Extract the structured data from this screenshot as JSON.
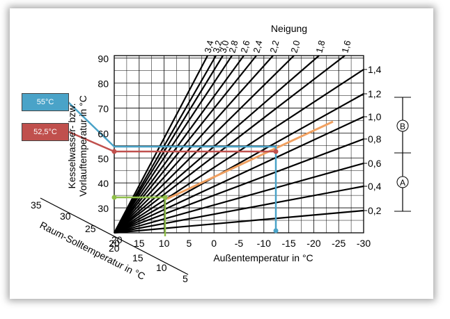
{
  "chart_data": {
    "type": "line",
    "title": "",
    "slope_label": "Neigung",
    "ylabel_line1": "Kesselwasser- bzw.",
    "ylabel_line2": "Vorlauftemperatur in °C",
    "xlabel": "Außentemperatur in °C",
    "room_label": "Raum-Solltemperatur in °C",
    "y_ticks": [
      "90",
      "80",
      "70",
      "60",
      "50",
      "40",
      "30"
    ],
    "x_ticks": [
      "20",
      "15",
      "10",
      "5",
      "0",
      "-5",
      "-10",
      "-15",
      "-20",
      "-25",
      "-30"
    ],
    "room_ticks_top": [
      "35",
      "30",
      "25",
      "20"
    ],
    "room_ticks_bottom": [
      "20",
      "15",
      "10",
      "5"
    ],
    "right_slopes": [
      "1,4",
      "1,2",
      "1,0",
      "0,8",
      "0,6",
      "0,4",
      "0,2"
    ],
    "top_slopes": [
      "3,4",
      "3,2",
      "3,0",
      "2,8",
      "2,6",
      "2,4",
      "2,2",
      "2,0",
      "1,8",
      "1,6"
    ],
    "range_a": "A",
    "range_b": "B",
    "series": [
      {
        "slope": 3.4
      },
      {
        "slope": 3.2
      },
      {
        "slope": 3.0
      },
      {
        "slope": 2.8
      },
      {
        "slope": 2.6
      },
      {
        "slope": 2.4
      },
      {
        "slope": 2.2
      },
      {
        "slope": 2.0
      },
      {
        "slope": 1.8
      },
      {
        "slope": 1.6
      },
      {
        "slope": 1.4
      },
      {
        "slope": 1.2
      },
      {
        "slope": 1.0
      },
      {
        "slope": 0.8
      },
      {
        "slope": 0.6
      },
      {
        "slope": 0.4
      },
      {
        "slope": 0.2
      }
    ],
    "annotations": [
      {
        "label": "55°C",
        "color": "#4aa3c8",
        "value": 55
      },
      {
        "label": "52,5°C",
        "color": "#c0504d",
        "value": 52.5
      }
    ],
    "highlight": {
      "color": "#f0a060",
      "room_temp": 10,
      "outdoor_temp": -12,
      "flow_temp": 34,
      "color_green": "#8fbf4a"
    }
  }
}
